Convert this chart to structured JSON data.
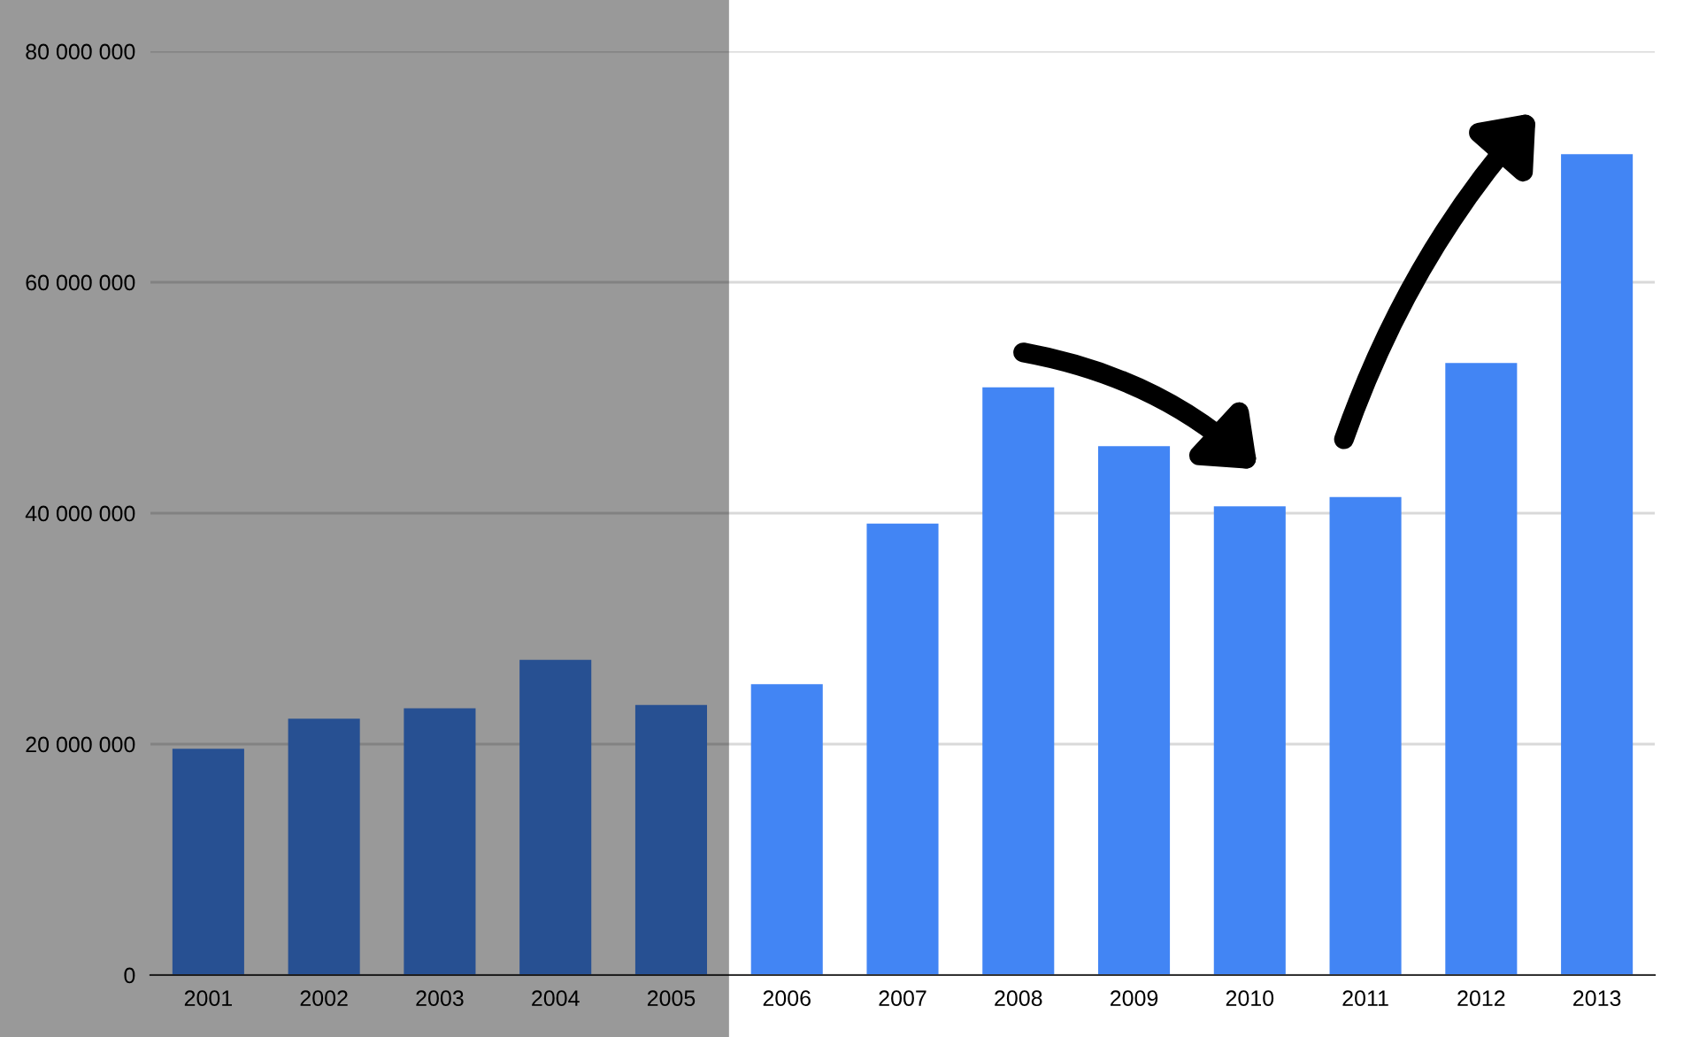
{
  "chart_data": {
    "type": "bar",
    "categories": [
      "2001",
      "2002",
      "2003",
      "2004",
      "2005",
      "2006",
      "2007",
      "2008",
      "2009",
      "2010",
      "2011",
      "2012",
      "2013"
    ],
    "values": [
      19600000,
      22200000,
      23100000,
      27300000,
      23400000,
      25200000,
      39100000,
      50900000,
      45800000,
      40600000,
      41400000,
      53000000,
      71100000
    ],
    "color": "#4285f4",
    "ylim": [
      0,
      80000000
    ],
    "yticks": [
      {
        "value": 0,
        "label": "0"
      },
      {
        "value": 20000000,
        "label": "20 000 000"
      },
      {
        "value": 40000000,
        "label": "40 000 000"
      },
      {
        "value": 60000000,
        "label": "60 000 000"
      },
      {
        "value": 80000000,
        "label": "80 000 000"
      }
    ],
    "bands": [
      {
        "axis": "x",
        "from": "2001",
        "to": "2005",
        "color": "#999999"
      }
    ],
    "grid": "y",
    "legend": false
  }
}
